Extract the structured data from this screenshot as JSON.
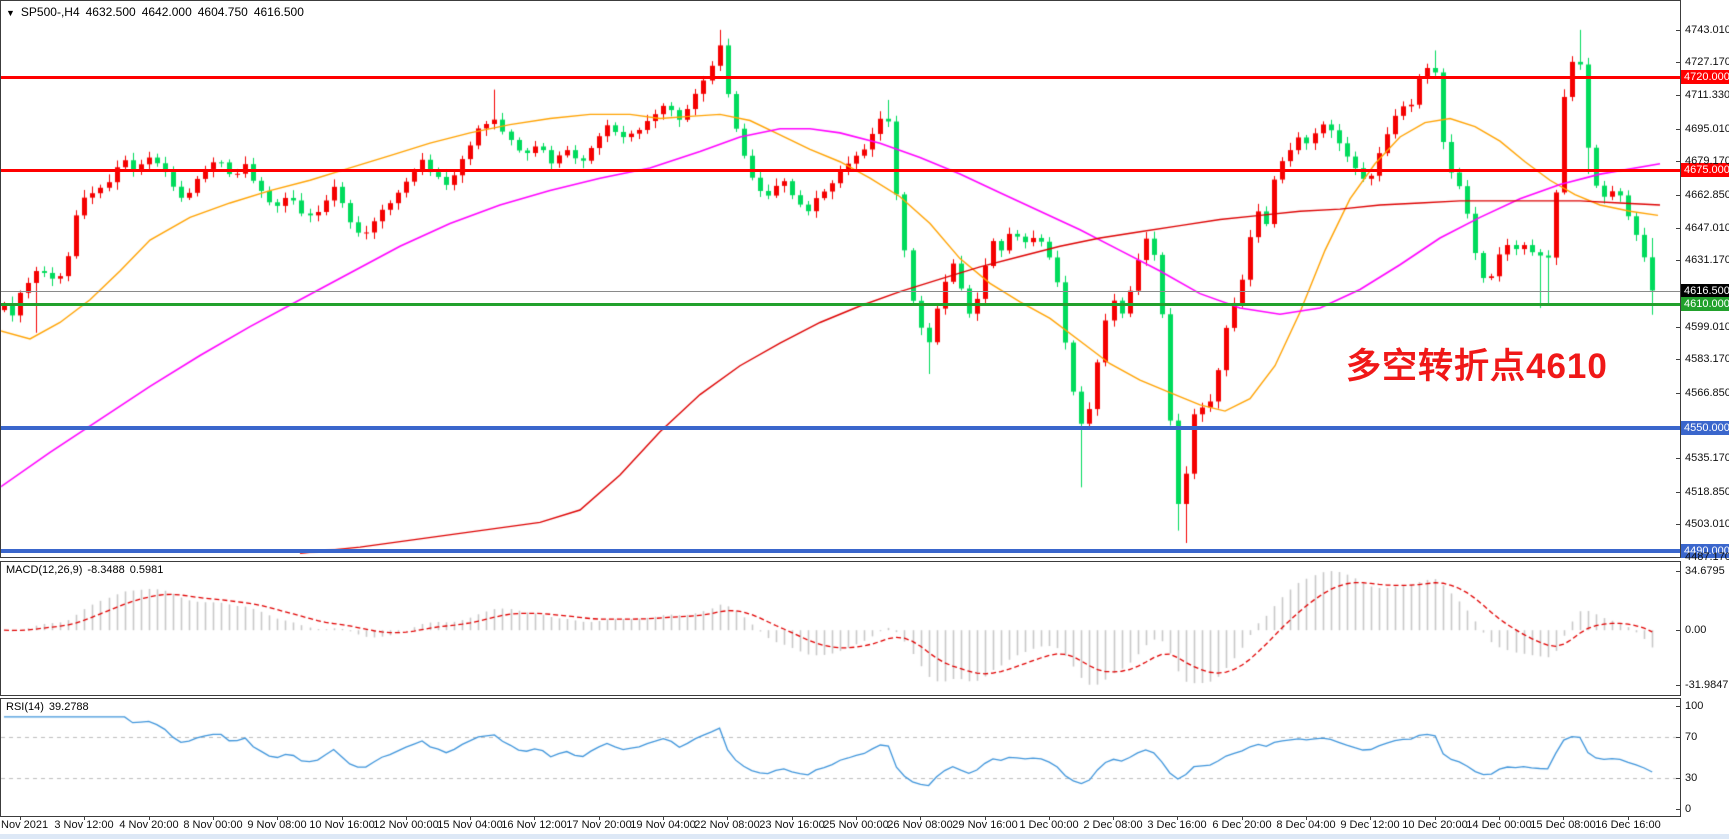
{
  "header": {
    "collapse_icon": "▼",
    "symbol": "SP500-,H4",
    "open": "4632.500",
    "high": "4642.000",
    "low": "4604.750",
    "close": "4616.500"
  },
  "annotation": {
    "text": "多空转折点4610",
    "color": "#f01818"
  },
  "price_axis": {
    "ticks": [
      4743.01,
      4727.17,
      4711.33,
      4695.01,
      4679.17,
      4662.85,
      4647.01,
      4631.17,
      4599.01,
      4583.17,
      4566.85,
      4535.17,
      4518.85,
      4503.01,
      4487.17
    ],
    "ylim": [
      4487.2,
      4757.0
    ]
  },
  "price_lines": [
    {
      "price": 4720.0,
      "label": "4720.000",
      "color": "#ff0000",
      "tag_bg": "#ff0000",
      "thickness": 3,
      "kind": "resistance"
    },
    {
      "price": 4675.0,
      "label": "4675.000",
      "color": "#ff0000",
      "tag_bg": "#ff0000",
      "thickness": 3,
      "kind": "resistance"
    },
    {
      "price": 4616.5,
      "label": "4616.500",
      "color": "#8a8a8a",
      "tag_bg": "#000000",
      "thickness": 1,
      "kind": "current-price"
    },
    {
      "price": 4610.0,
      "label": "4610.000",
      "color": "#22a12c",
      "tag_bg": "#22a12c",
      "thickness": 3,
      "kind": "pivot"
    },
    {
      "price": 4550.0,
      "label": "4550.000",
      "color": "#3a66cc",
      "tag_bg": "#3a66cc",
      "thickness": 4,
      "kind": "support"
    },
    {
      "price": 4490.0,
      "label": "4490.000",
      "color": "#3a66cc",
      "tag_bg": "#3a66cc",
      "thickness": 4,
      "kind": "support"
    }
  ],
  "time_axis": {
    "labels": [
      "2 Nov 2021",
      "3 Nov 12:00",
      "4 Nov 20:00",
      "8 Nov 00:00",
      "9 Nov 08:00",
      "10 Nov 16:00",
      "12 Nov 00:00",
      "15 Nov 04:00",
      "16 Nov 12:00",
      "17 Nov 20:00",
      "19 Nov 04:00",
      "22 Nov 08:00",
      "23 Nov 16:00",
      "25 Nov 00:00",
      "26 Nov 08:00",
      "29 Nov 16:00",
      "1 Dec 00:00",
      "2 Dec 08:00",
      "3 Dec 16:00",
      "6 Dec 20:00",
      "8 Dec 04:00",
      "9 Dec 12:00",
      "10 Dec 20:00",
      "14 Dec 00:00",
      "15 Dec 08:00",
      "16 Dec 16:00"
    ],
    "start_x": 20,
    "spacing": 64.3
  },
  "indicators": {
    "macd": {
      "label": "MACD(12,26,9)",
      "value_main": "-8.3488",
      "value_signal": "0.5981",
      "axis_labels": [
        "34.6795",
        "0.00",
        "-31.9847"
      ],
      "axis_values": [
        34.6795,
        0.0,
        -31.9847
      ],
      "ylim": [
        -38,
        40
      ],
      "hist_color": "#c9c9c9",
      "signal_color": "#e00000"
    },
    "rsi": {
      "label": "RSI(14)",
      "value": "39.2788",
      "axis_labels": [
        "100",
        "70",
        "30",
        "0"
      ],
      "axis_values": [
        100,
        70,
        30,
        0
      ],
      "levels": [
        70,
        30
      ],
      "ylim": [
        -7,
        107
      ],
      "line_color": "#3f95db",
      "level_color": "#bdbdbd"
    }
  },
  "chart_data": {
    "type": "candlestick",
    "symbol": "SP500",
    "timeframe": "H4",
    "up_color": "#f40000",
    "down_color": "#00db5c",
    "bar_spacing": 8.04,
    "first_x": 4,
    "last_ohlc": {
      "open": 4632.5,
      "high": 4642.0,
      "low": 4604.75,
      "close": 4616.5
    },
    "anchors": [
      [
        2,
        4612
      ],
      [
        11,
        4603
      ],
      [
        22,
        4618
      ],
      [
        36,
        4626
      ],
      [
        51,
        4622
      ],
      [
        65,
        4625
      ],
      [
        78,
        4657
      ],
      [
        90,
        4663
      ],
      [
        107,
        4668
      ],
      [
        124,
        4680
      ],
      [
        137,
        4674
      ],
      [
        152,
        4683
      ],
      [
        169,
        4670
      ],
      [
        183,
        4660
      ],
      [
        200,
        4673
      ],
      [
        216,
        4680
      ],
      [
        231,
        4672
      ],
      [
        245,
        4678
      ],
      [
        261,
        4665
      ],
      [
        276,
        4657
      ],
      [
        290,
        4663
      ],
      [
        306,
        4650
      ],
      [
        321,
        4656
      ],
      [
        335,
        4668
      ],
      [
        349,
        4650
      ],
      [
        362,
        4643
      ],
      [
        377,
        4652
      ],
      [
        392,
        4660
      ],
      [
        407,
        4670
      ],
      [
        422,
        4680
      ],
      [
        437,
        4672
      ],
      [
        450,
        4668
      ],
      [
        464,
        4682
      ],
      [
        478,
        4695
      ],
      [
        492,
        4701
      ],
      [
        506,
        4692
      ],
      [
        521,
        4683
      ],
      [
        537,
        4687
      ],
      [
        551,
        4678
      ],
      [
        566,
        4685
      ],
      [
        581,
        4678
      ],
      [
        596,
        4690
      ],
      [
        611,
        4697
      ],
      [
        625,
        4690
      ],
      [
        641,
        4695
      ],
      [
        655,
        4702
      ],
      [
        668,
        4706
      ],
      [
        680,
        4699
      ],
      [
        693,
        4710
      ],
      [
        703,
        4718
      ],
      [
        712,
        4726
      ],
      [
        720,
        4736
      ],
      [
        727,
        4713
      ],
      [
        740,
        4688
      ],
      [
        754,
        4668
      ],
      [
        767,
        4662
      ],
      [
        781,
        4672
      ],
      [
        794,
        4661
      ],
      [
        808,
        4655
      ],
      [
        821,
        4663
      ],
      [
        835,
        4670
      ],
      [
        848,
        4678
      ],
      [
        862,
        4683
      ],
      [
        876,
        4695
      ],
      [
        887,
        4705
      ],
      [
        895,
        4668
      ],
      [
        903,
        4641
      ],
      [
        911,
        4614
      ],
      [
        919,
        4601
      ],
      [
        927,
        4588
      ],
      [
        935,
        4605
      ],
      [
        944,
        4620
      ],
      [
        954,
        4631
      ],
      [
        963,
        4613
      ],
      [
        972,
        4601
      ],
      [
        982,
        4622
      ],
      [
        991,
        4642
      ],
      [
        1000,
        4635
      ],
      [
        1010,
        4645
      ],
      [
        1019,
        4642
      ],
      [
        1028,
        4639
      ],
      [
        1038,
        4643
      ],
      [
        1047,
        4635
      ],
      [
        1056,
        4625
      ],
      [
        1067,
        4585
      ],
      [
        1076,
        4560
      ],
      [
        1085,
        4547
      ],
      [
        1094,
        4572
      ],
      [
        1104,
        4600
      ],
      [
        1113,
        4612
      ],
      [
        1122,
        4605
      ],
      [
        1132,
        4620
      ],
      [
        1141,
        4638
      ],
      [
        1150,
        4645
      ],
      [
        1159,
        4618
      ],
      [
        1166,
        4585
      ],
      [
        1174,
        4520
      ],
      [
        1182,
        4506
      ],
      [
        1190,
        4550
      ],
      [
        1198,
        4562
      ],
      [
        1207,
        4558
      ],
      [
        1216,
        4572
      ],
      [
        1224,
        4595
      ],
      [
        1232,
        4608
      ],
      [
        1240,
        4616
      ],
      [
        1249,
        4640
      ],
      [
        1257,
        4656
      ],
      [
        1266,
        4648
      ],
      [
        1274,
        4670
      ],
      [
        1283,
        4680
      ],
      [
        1291,
        4685
      ],
      [
        1300,
        4692
      ],
      [
        1308,
        4687
      ],
      [
        1317,
        4695
      ],
      [
        1325,
        4698
      ],
      [
        1334,
        4692
      ],
      [
        1342,
        4685
      ],
      [
        1351,
        4680
      ],
      [
        1359,
        4672
      ],
      [
        1368,
        4668
      ],
      [
        1376,
        4680
      ],
      [
        1385,
        4690
      ],
      [
        1393,
        4700
      ],
      [
        1402,
        4706
      ],
      [
        1410,
        4705
      ],
      [
        1419,
        4720
      ],
      [
        1428,
        4725
      ],
      [
        1436,
        4722
      ],
      [
        1445,
        4680
      ],
      [
        1453,
        4672
      ],
      [
        1462,
        4665
      ],
      [
        1470,
        4648
      ],
      [
        1478,
        4628
      ],
      [
        1487,
        4618
      ],
      [
        1495,
        4628
      ],
      [
        1503,
        4638
      ],
      [
        1511,
        4640
      ],
      [
        1519,
        4634
      ],
      [
        1527,
        4642
      ],
      [
        1535,
        4630
      ],
      [
        1543,
        4636
      ],
      [
        1551,
        4630
      ],
      [
        1561,
        4704
      ],
      [
        1570,
        4725
      ],
      [
        1578,
        4736
      ],
      [
        1587,
        4688
      ],
      [
        1595,
        4668
      ],
      [
        1604,
        4662
      ],
      [
        1613,
        4665
      ],
      [
        1622,
        4662
      ],
      [
        1631,
        4648
      ],
      [
        1639,
        4641
      ],
      [
        1647,
        4628
      ],
      [
        1655,
        4616.5
      ]
    ],
    "wick_overrides": [
      [
        35,
        null,
        4596
      ],
      [
        492,
        4714,
        null
      ],
      [
        716,
        4743,
        null
      ],
      [
        720,
        4743,
        null
      ],
      [
        887,
        4709,
        null
      ],
      [
        927,
        null,
        4576
      ],
      [
        1085,
        null,
        4521
      ],
      [
        1174,
        null,
        4500
      ],
      [
        1182,
        null,
        4494
      ],
      [
        1436,
        4733,
        null
      ],
      [
        1543,
        null,
        4608
      ],
      [
        1551,
        null,
        4610
      ],
      [
        1578,
        4743,
        null
      ],
      [
        1587,
        null,
        4673
      ],
      [
        1655,
        4642,
        4604.75
      ]
    ],
    "ma_series": [
      {
        "name": "ma-fast-orange",
        "color": "#ffa200",
        "width": 1.4,
        "points": [
          [
            0,
            4597
          ],
          [
            30,
            4593
          ],
          [
            60,
            4601
          ],
          [
            90,
            4612
          ],
          [
            120,
            4626
          ],
          [
            150,
            4641
          ],
          [
            190,
            4652
          ],
          [
            230,
            4659
          ],
          [
            270,
            4665
          ],
          [
            310,
            4670
          ],
          [
            350,
            4676
          ],
          [
            390,
            4682
          ],
          [
            430,
            4688
          ],
          [
            470,
            4693
          ],
          [
            510,
            4697
          ],
          [
            550,
            4700
          ],
          [
            590,
            4702
          ],
          [
            630,
            4702
          ],
          [
            660,
            4700
          ],
          [
            690,
            4701
          ],
          [
            720,
            4702
          ],
          [
            750,
            4699
          ],
          [
            780,
            4692
          ],
          [
            810,
            4685
          ],
          [
            840,
            4679
          ],
          [
            870,
            4671
          ],
          [
            900,
            4662
          ],
          [
            930,
            4649
          ],
          [
            960,
            4632
          ],
          [
            990,
            4620
          ],
          [
            1020,
            4611
          ],
          [
            1050,
            4603
          ],
          [
            1080,
            4592
          ],
          [
            1110,
            4581
          ],
          [
            1140,
            4573
          ],
          [
            1170,
            4567
          ],
          [
            1200,
            4561
          ],
          [
            1225,
            4558
          ],
          [
            1250,
            4564
          ],
          [
            1275,
            4580
          ],
          [
            1300,
            4606
          ],
          [
            1325,
            4636
          ],
          [
            1350,
            4661
          ],
          [
            1375,
            4678
          ],
          [
            1400,
            4691
          ],
          [
            1425,
            4698
          ],
          [
            1450,
            4700
          ],
          [
            1475,
            4696
          ],
          [
            1500,
            4689
          ],
          [
            1525,
            4679
          ],
          [
            1550,
            4670
          ],
          [
            1575,
            4663
          ],
          [
            1600,
            4658
          ],
          [
            1630,
            4655
          ],
          [
            1658,
            4653
          ]
        ]
      },
      {
        "name": "ma-mid-magenta",
        "color": "#ff00ff",
        "width": 1.6,
        "points": [
          [
            0,
            4521
          ],
          [
            50,
            4538
          ],
          [
            100,
            4554
          ],
          [
            150,
            4570
          ],
          [
            200,
            4585
          ],
          [
            250,
            4599
          ],
          [
            300,
            4612
          ],
          [
            350,
            4625
          ],
          [
            400,
            4638
          ],
          [
            450,
            4649
          ],
          [
            500,
            4658
          ],
          [
            550,
            4665
          ],
          [
            600,
            4671
          ],
          [
            650,
            4676
          ],
          [
            700,
            4684
          ],
          [
            740,
            4691
          ],
          [
            780,
            4695
          ],
          [
            810,
            4695
          ],
          [
            840,
            4693
          ],
          [
            880,
            4688
          ],
          [
            920,
            4681
          ],
          [
            960,
            4673
          ],
          [
            1000,
            4664
          ],
          [
            1040,
            4655
          ],
          [
            1080,
            4646
          ],
          [
            1120,
            4636
          ],
          [
            1160,
            4626
          ],
          [
            1200,
            4615
          ],
          [
            1240,
            4608
          ],
          [
            1280,
            4605
          ],
          [
            1320,
            4608
          ],
          [
            1360,
            4617
          ],
          [
            1400,
            4629
          ],
          [
            1440,
            4642
          ],
          [
            1480,
            4652
          ],
          [
            1520,
            4661
          ],
          [
            1560,
            4668
          ],
          [
            1600,
            4673
          ],
          [
            1660,
            4678
          ]
        ]
      },
      {
        "name": "ma-slow-red",
        "color": "#dd0000",
        "width": 1.4,
        "points": [
          [
            300,
            4489
          ],
          [
            360,
            4492
          ],
          [
            420,
            4496
          ],
          [
            480,
            4500
          ],
          [
            540,
            4504
          ],
          [
            580,
            4510
          ],
          [
            620,
            4527
          ],
          [
            660,
            4548
          ],
          [
            700,
            4566
          ],
          [
            740,
            4580
          ],
          [
            780,
            4591
          ],
          [
            820,
            4601
          ],
          [
            860,
            4609
          ],
          [
            900,
            4616
          ],
          [
            940,
            4622
          ],
          [
            980,
            4628
          ],
          [
            1020,
            4633
          ],
          [
            1060,
            4638
          ],
          [
            1100,
            4642
          ],
          [
            1140,
            4645
          ],
          [
            1180,
            4648
          ],
          [
            1220,
            4651
          ],
          [
            1260,
            4653
          ],
          [
            1300,
            4655
          ],
          [
            1340,
            4656
          ],
          [
            1380,
            4658
          ],
          [
            1420,
            4659
          ],
          [
            1460,
            4660
          ],
          [
            1500,
            4660
          ],
          [
            1540,
            4660
          ],
          [
            1580,
            4660
          ],
          [
            1620,
            4659
          ],
          [
            1660,
            4658
          ]
        ]
      }
    ]
  }
}
